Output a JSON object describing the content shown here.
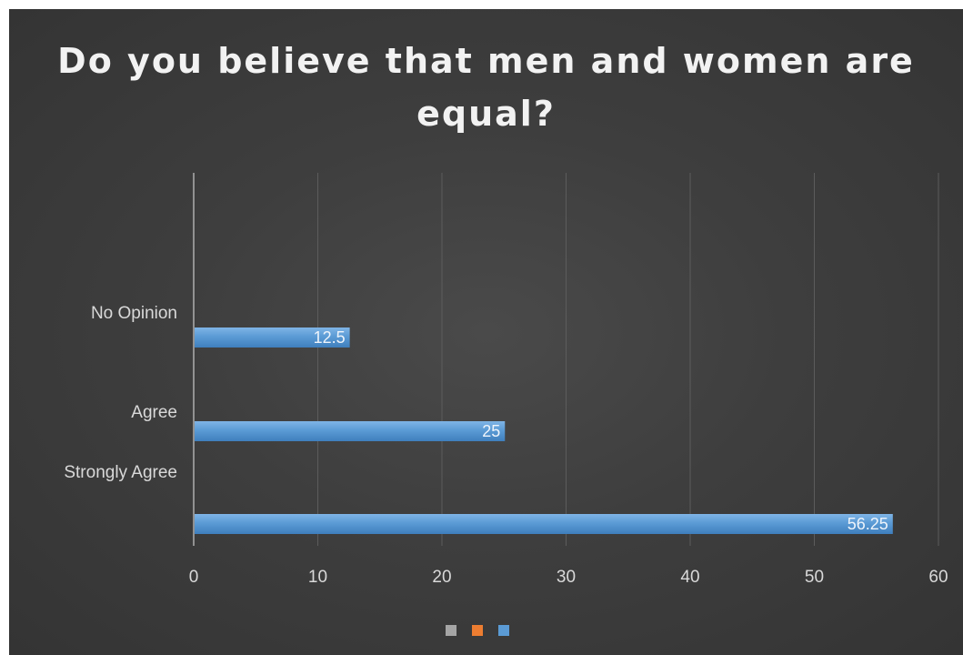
{
  "chart_data": {
    "type": "bar",
    "orientation": "horizontal",
    "title": "Do you believe that men and women are equal?",
    "categories": [
      "No Opinion",
      "Agree",
      "Strongly Agree"
    ],
    "values": [
      12.5,
      25,
      56.25
    ],
    "data_labels": [
      "12.5",
      "25",
      "56.25"
    ],
    "xlim": [
      0,
      60
    ],
    "xticks": [
      "0",
      "10",
      "20",
      "30",
      "40",
      "50",
      "60"
    ],
    "xlabel": "",
    "ylabel": "",
    "grid": "vertical",
    "legend": "bottom",
    "legend_swatches": [
      {
        "icon": "gray-square-icon",
        "color": "#a5a5a5"
      },
      {
        "icon": "orange-square-icon",
        "color": "#ed7d31"
      },
      {
        "icon": "blue-square-icon",
        "color": "#5b9bd5"
      }
    ],
    "bar_color": "#5b9bd5",
    "background_color": "#404040"
  }
}
